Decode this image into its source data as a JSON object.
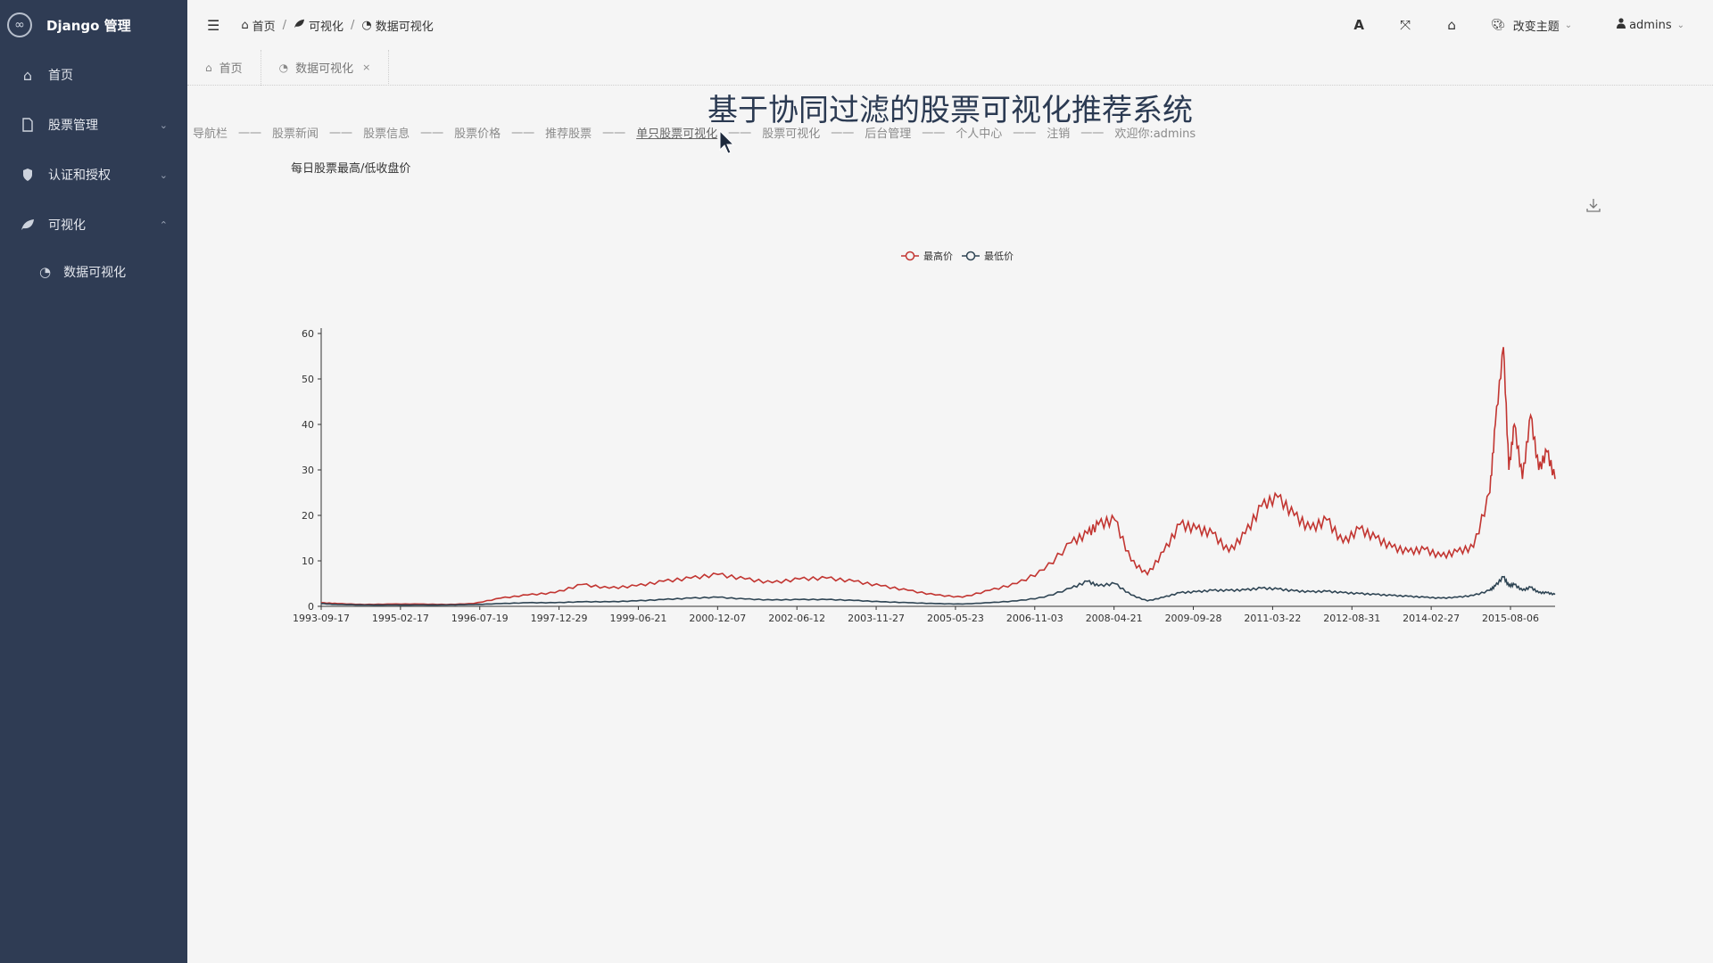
{
  "app": {
    "title": "Django 管理"
  },
  "sidebar": {
    "items": [
      {
        "label": "首页",
        "icon": "home-icon"
      },
      {
        "label": "股票管理",
        "icon": "file-icon",
        "chevron": "⌄"
      },
      {
        "label": "认证和授权",
        "icon": "shield-icon",
        "chevron": "⌄"
      },
      {
        "label": "可视化",
        "icon": "leaf-icon",
        "chevron": "⌃"
      }
    ],
    "subitems": [
      {
        "label": "数据可视化",
        "icon": "dashboard-icon"
      }
    ]
  },
  "header": {
    "breadcrumb": [
      "首页",
      "可视化",
      "数据可视化"
    ],
    "theme_label": "改变主题",
    "user_label": "admins"
  },
  "tabs": [
    {
      "label": "首页"
    },
    {
      "label": "数据可视化",
      "close": "×"
    }
  ],
  "page": {
    "title": "基于协同过滤的股票可视化推荐系统",
    "nav": [
      "导航栏",
      "股票新闻",
      "股票信息",
      "股票价格",
      "推荐股票",
      "单只股票可视化",
      "股票可视化",
      "后台管理",
      "个人中心",
      "注销",
      "欢迎你:admins"
    ],
    "nav_separator": "一一",
    "nav_active": "单只股票可视化"
  },
  "colors": {
    "sidebar_bg": "#2f3c54",
    "series_high": "#c23531",
    "series_low": "#2f4554"
  },
  "chart_data": {
    "type": "line",
    "title": "每日股票最高/低收盘价",
    "xlabel": "",
    "ylabel": "",
    "ylim": [
      0,
      60
    ],
    "yticks": [
      0,
      10,
      20,
      30,
      40,
      50,
      60
    ],
    "xticks": [
      "1993-09-17",
      "1995-02-17",
      "1996-07-19",
      "1997-12-29",
      "1999-06-21",
      "2000-12-07",
      "2002-06-12",
      "2003-11-27",
      "2005-05-23",
      "2006-11-03",
      "2008-04-21",
      "2009-09-28",
      "2011-03-22",
      "2012-08-31",
      "2014-02-27",
      "2015-08-06"
    ],
    "legend_position": "top-center",
    "grid": false,
    "x": [
      1993.7,
      1994.0,
      1994.5,
      1995.0,
      1995.5,
      1996.0,
      1996.5,
      1997.0,
      1997.5,
      1998.0,
      1998.5,
      1999.0,
      1999.5,
      2000.0,
      2000.5,
      2001.0,
      2001.5,
      2002.0,
      2002.5,
      2003.0,
      2003.5,
      2004.0,
      2004.5,
      2005.0,
      2005.5,
      2006.0,
      2006.5,
      2007.0,
      2007.5,
      2007.8,
      2008.0,
      2008.3,
      2008.6,
      2008.9,
      2009.2,
      2009.5,
      2009.8,
      2010.1,
      2010.4,
      2010.7,
      2011.0,
      2011.3,
      2011.6,
      2011.9,
      2012.2,
      2012.5,
      2012.8,
      2013.1,
      2013.4,
      2013.7,
      2014.0,
      2014.3,
      2014.6,
      2014.9,
      2015.2,
      2015.3,
      2015.45,
      2015.55,
      2015.65,
      2015.8,
      2015.95,
      2016.1,
      2016.25,
      2016.4
    ],
    "series": [
      {
        "name": "最高价",
        "values": [
          0.8,
          0.6,
          0.4,
          0.5,
          0.5,
          0.4,
          0.6,
          1.8,
          2.5,
          3.0,
          4.8,
          4.0,
          4.5,
          5.5,
          6.2,
          7.0,
          6.0,
          5.2,
          6.0,
          6.2,
          5.5,
          4.5,
          3.5,
          2.5,
          2.0,
          3.5,
          5.0,
          8.0,
          14.0,
          16.0,
          18.0,
          19.0,
          10.0,
          7.0,
          12.0,
          18.0,
          17.0,
          16.0,
          12.0,
          16.0,
          22.0,
          24.0,
          20.0,
          17.0,
          19.0,
          14.0,
          17.0,
          15.0,
          13.0,
          12.0,
          12.5,
          11.0,
          12.0,
          13.0,
          25.0,
          40.0,
          57.0,
          30.0,
          40.0,
          28.0,
          42.0,
          30.0,
          34.0,
          28.0
        ]
      },
      {
        "name": "最低价",
        "values": [
          0.6,
          0.4,
          0.3,
          0.3,
          0.3,
          0.3,
          0.4,
          0.6,
          0.8,
          0.8,
          1.0,
          1.0,
          1.2,
          1.5,
          1.8,
          2.0,
          1.6,
          1.4,
          1.5,
          1.5,
          1.3,
          1.0,
          0.8,
          0.6,
          0.5,
          0.8,
          1.2,
          2.0,
          4.0,
          5.5,
          4.5,
          5.0,
          2.5,
          1.2,
          2.0,
          3.0,
          3.2,
          3.5,
          3.5,
          3.6,
          4.0,
          3.8,
          3.4,
          3.2,
          3.3,
          3.0,
          2.8,
          2.6,
          2.4,
          2.2,
          2.0,
          1.8,
          2.0,
          2.4,
          3.5,
          4.5,
          6.5,
          4.5,
          4.8,
          3.5,
          4.2,
          3.0,
          3.0,
          2.6
        ]
      }
    ]
  }
}
